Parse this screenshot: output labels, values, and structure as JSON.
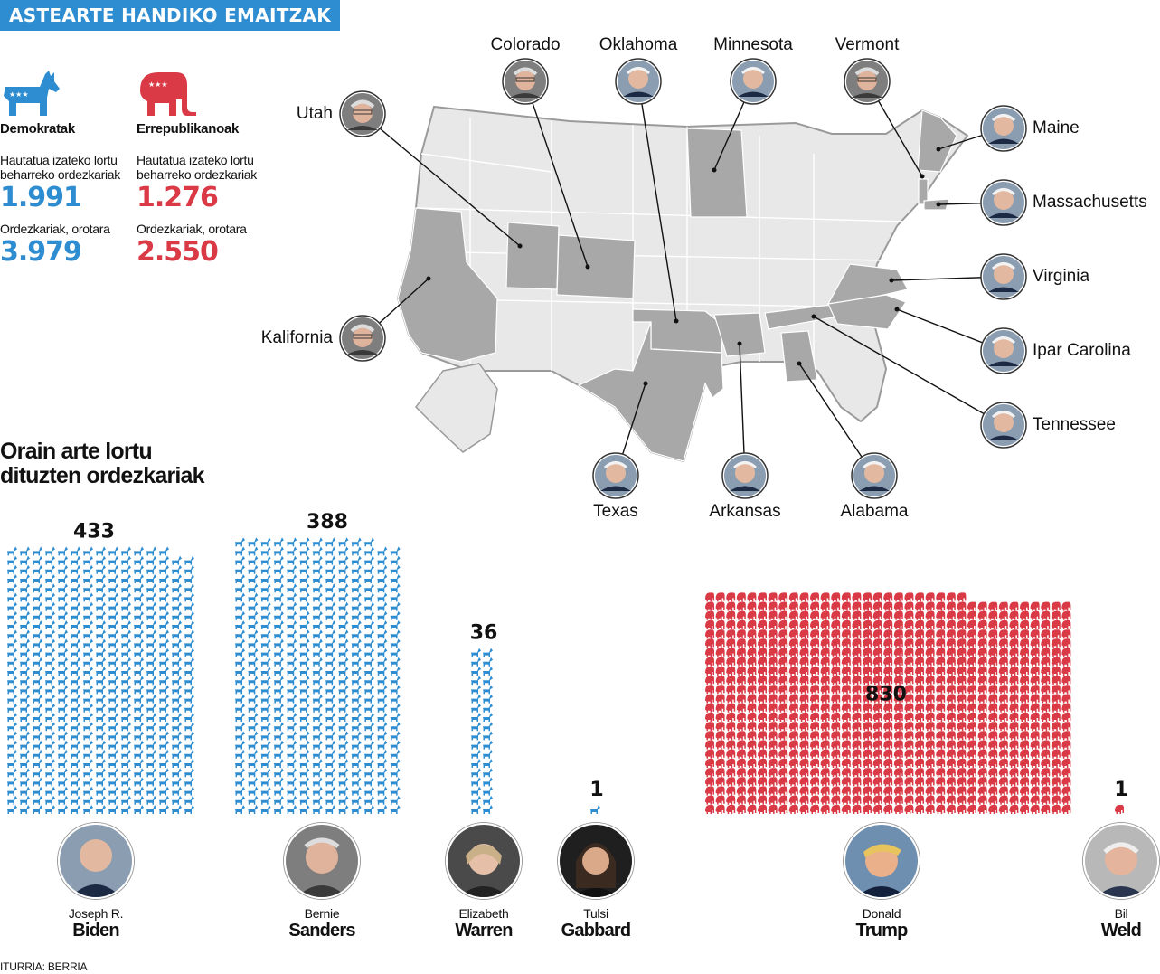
{
  "header": {
    "title": "ASTEARTE HANDIKO EMAITZAK"
  },
  "parties": {
    "dem": {
      "name": "Demokratak",
      "needed_label": "Hautatua izateko lortu beharreko ordezkariak",
      "needed": "1.991",
      "total_label": "Ordezkariak, orotara",
      "total": "3.979",
      "color": "#2e8dd0"
    },
    "rep": {
      "name": "Errepublikanoak",
      "needed_label": "Hautatua izateko lortu beharreko ordezkariak",
      "needed": "1.276",
      "total_label": "Ordezkariak, orotara",
      "total": "2.550",
      "color": "#d93a45"
    }
  },
  "map": {
    "winners": [
      {
        "state": "Colorado",
        "winner": "Sanders"
      },
      {
        "state": "Oklahoma",
        "winner": "Biden"
      },
      {
        "state": "Minnesota",
        "winner": "Biden"
      },
      {
        "state": "Vermont",
        "winner": "Sanders"
      },
      {
        "state": "Utah",
        "winner": "Sanders"
      },
      {
        "state": "Maine",
        "winner": "Biden"
      },
      {
        "state": "Massachusetts",
        "winner": "Biden"
      },
      {
        "state": "Virginia",
        "winner": "Biden"
      },
      {
        "state": "Ipar Carolina",
        "winner": "Biden"
      },
      {
        "state": "Tennessee",
        "winner": "Biden"
      },
      {
        "state": "Kalifornia",
        "winner": "Sanders"
      },
      {
        "state": "Texas",
        "winner": "Biden"
      },
      {
        "state": "Arkansas",
        "winner": "Biden"
      },
      {
        "state": "Alabama",
        "winner": "Biden"
      }
    ]
  },
  "section_title_line1": "Orain arte lortu",
  "section_title_line2": "dituzten ordezkariak",
  "chart_data": {
    "type": "bar",
    "title": "Orain arte lortu dituzten ordezkariak",
    "categories": [
      "Joseph R. Biden",
      "Bernie Sanders",
      "Elizabeth Warren",
      "Tulsi Gabbard",
      "Donald Trump",
      "Bil Weld"
    ],
    "series": [
      {
        "name": "Demokratak",
        "values": [
          433,
          388,
          36,
          1,
          null,
          null
        ]
      },
      {
        "name": "Errepublikanoak",
        "values": [
          null,
          null,
          null,
          null,
          830,
          1
        ]
      }
    ]
  },
  "candidates": [
    {
      "first": "Joseph R.",
      "last": "Biden",
      "count": "433",
      "party": "dem"
    },
    {
      "first": "Bernie",
      "last": "Sanders",
      "count": "388",
      "party": "dem"
    },
    {
      "first": "Elizabeth",
      "last": "Warren",
      "count": "36",
      "party": "dem"
    },
    {
      "first": "Tulsi",
      "last": "Gabbard",
      "count": "1",
      "party": "dem"
    },
    {
      "first": "Donald",
      "last": "Trump",
      "count": "830",
      "party": "rep"
    },
    {
      "first": "Bil",
      "last": "Weld",
      "count": "1",
      "party": "rep"
    }
  ],
  "source": "ITURRIA: BERRIA"
}
